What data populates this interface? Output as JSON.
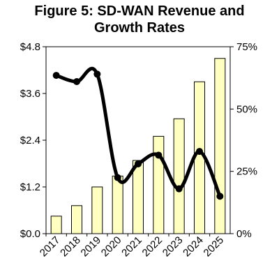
{
  "title_line1": "Figure 5:  SD-WAN Revenue and",
  "title_line2": "Growth Rates",
  "chart_data": {
    "type": "bar",
    "title": "Figure 5:  SD-WAN Revenue and Growth Rates",
    "categories": [
      "2017",
      "2018",
      "2019",
      "2020",
      "2021",
      "2022",
      "2023",
      "2024",
      "2025"
    ],
    "series": [
      {
        "kind": "bar",
        "axis": "left",
        "values": [
          0.45,
          0.72,
          1.2,
          1.48,
          1.88,
          2.5,
          2.95,
          3.9,
          4.5
        ],
        "color": "#ffffc0"
      },
      {
        "kind": "line",
        "axis": "right",
        "values": [
          63.5,
          61,
          64,
          22.5,
          28,
          31.5,
          18,
          33,
          15
        ],
        "color": "#000000"
      }
    ],
    "y_left": {
      "ylim": [
        0,
        4.8
      ],
      "ticks": [
        "$0.0",
        "$1.2",
        "$2.4",
        "$3.6",
        "$4.8"
      ]
    },
    "y_right": {
      "ylim": [
        0,
        75
      ],
      "ticks": [
        "0%",
        "25%",
        "50%",
        "75%"
      ]
    },
    "grid": false,
    "legend": "none"
  }
}
